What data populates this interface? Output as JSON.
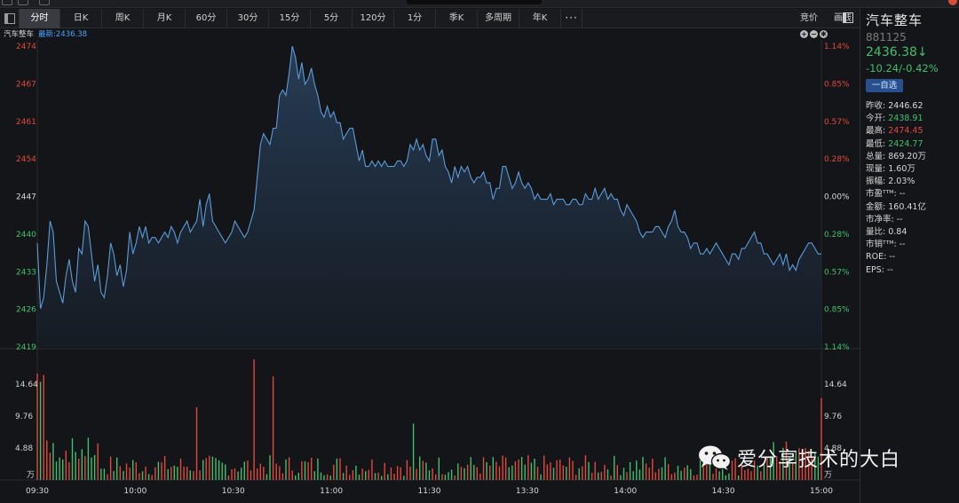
{
  "toolbar": {
    "periods": [
      "分时",
      "日K",
      "周K",
      "月K",
      "60分",
      "30分",
      "15分",
      "5分",
      "120分",
      "1分",
      "季K",
      "多周期",
      "年K"
    ],
    "active": "分时",
    "right_buttons": [
      "竞价",
      "画线"
    ],
    "more": "···"
  },
  "chart_header": {
    "name": "汽车整车",
    "latest_label": "最新:",
    "latest_value": "2436.38"
  },
  "colors": {
    "up": "#e2483b",
    "down": "#3fc06e",
    "flat": "#d8d8d8",
    "line": "#5b9bd8",
    "accent": "#4aa3ff"
  },
  "chart_data": {
    "type": "line",
    "x_ticks": [
      "09:30",
      "10:00",
      "10:30",
      "11:00",
      "11:30",
      "13:30",
      "14:00",
      "14:30",
      "15:00"
    ],
    "price_ticks": [
      "2474",
      "2467",
      "2461",
      "2454",
      "2447",
      "2440",
      "2433",
      "2426",
      "2419"
    ],
    "pct_ticks": [
      "1.14%",
      "0.85%",
      "0.57%",
      "0.28%",
      "0.00%",
      "0.28%",
      "0.57%",
      "0.85%",
      "1.14%"
    ],
    "prev_close": 2446.62,
    "ylim": [
      2419,
      2474
    ],
    "price": [
      2438,
      2426,
      2428,
      2434,
      2442,
      2440,
      2431,
      2429,
      2427,
      2432,
      2435,
      2431,
      2429,
      2437,
      2436,
      2442,
      2441,
      2436,
      2431,
      2434,
      2429,
      2428,
      2432,
      2438,
      2436,
      2432,
      2434,
      2430,
      2433,
      2440,
      2436,
      2438,
      2441,
      2439,
      2441,
      2438,
      2439,
      2439,
      2438,
      2439,
      2440,
      2439,
      2441,
      2440,
      2438,
      2440,
      2441,
      2442,
      2440,
      2441,
      2442,
      2446,
      2441,
      2445,
      2447,
      2442,
      2441,
      2440,
      2439,
      2438,
      2439,
      2440,
      2442,
      2441,
      2440,
      2439,
      2440,
      2442,
      2444,
      2450,
      2456,
      2458,
      2457,
      2456,
      2459,
      2459,
      2465,
      2466,
      2465,
      2469,
      2474,
      2472,
      2468,
      2471,
      2467,
      2468,
      2470,
      2467,
      2465,
      2462,
      2461,
      2463,
      2461,
      2462,
      2460,
      2460,
      2457,
      2458,
      2459,
      2459,
      2456,
      2453,
      2455,
      2452,
      2452,
      2453,
      2452,
      2453,
      2452,
      2453,
      2452,
      2452,
      2452,
      2453,
      2453,
      2452,
      2453,
      2456,
      2455,
      2457,
      2455,
      2456,
      2454,
      2453,
      2457,
      2457,
      2454,
      2455,
      2452,
      2451,
      2449,
      2452,
      2450,
      2452,
      2451,
      2452,
      2450,
      2449,
      2450,
      2450,
      2451,
      2449,
      2449,
      2446,
      2448,
      2448,
      2452,
      2452,
      2450,
      2448,
      2449,
      2451,
      2449,
      2448,
      2449,
      2448,
      2446,
      2447,
      2446,
      2446,
      2446,
      2447,
      2445,
      2446,
      2446,
      2446,
      2445,
      2445,
      2446,
      2446,
      2445,
      2445,
      2447,
      2446,
      2446,
      2448,
      2446,
      2447,
      2448,
      2446,
      2447,
      2446,
      2446,
      2444,
      2443,
      2445,
      2444,
      2443,
      2442,
      2440,
      2439,
      2440,
      2440,
      2440,
      2441,
      2441,
      2440,
      2439,
      2441,
      2442,
      2444,
      2441,
      2440,
      2440,
      2439,
      2437,
      2438,
      2438,
      2436,
      2436,
      2437,
      2436,
      2437,
      2438,
      2437,
      2436,
      2435,
      2434,
      2436,
      2436,
      2435,
      2437,
      2437,
      2438,
      2439,
      2440,
      2438,
      2438,
      2436,
      2436,
      2435,
      2434,
      2435,
      2436,
      2434,
      2436,
      2433,
      2434,
      2433,
      2435,
      2436,
      2437,
      2438,
      2438,
      2437,
      2436,
      2436
    ],
    "volume_ticks": [
      "14.64",
      "9.76",
      "4.88",
      "万"
    ],
    "volume_unit": "万",
    "volume_max": 19.5
  },
  "panel": {
    "name": "汽车整车",
    "code": "881125",
    "price": "2436.38↓",
    "change": "-10.24/-0.42%",
    "watch_button": "一自选",
    "stats": [
      {
        "label": "昨收:",
        "value": "2446.62",
        "tone": "flat"
      },
      {
        "label": "今开:",
        "value": "2438.91",
        "tone": "down"
      },
      {
        "label": "最高:",
        "value": "2474.45",
        "tone": "up"
      },
      {
        "label": "最低:",
        "value": "2424.77",
        "tone": "down"
      },
      {
        "label": "总量:",
        "value": "869.20万",
        "tone": "flat"
      },
      {
        "label": "现量:",
        "value": "1.60万",
        "tone": "flat"
      },
      {
        "label": "振幅:",
        "value": "2.03%",
        "tone": "flat"
      },
      {
        "label": "市盈ᵀᵀᴹ:",
        "value": "--",
        "tone": "flat"
      },
      {
        "label": "金额:",
        "value": "160.41亿",
        "tone": "flat"
      },
      {
        "label": "市净率:",
        "value": "--",
        "tone": "flat"
      },
      {
        "label": "量比:",
        "value": "0.84",
        "tone": "flat"
      },
      {
        "label": "市销ᵀᵀᴹ:",
        "value": "--",
        "tone": "flat"
      },
      {
        "label": "ROE:",
        "value": "--",
        "tone": "flat"
      },
      {
        "label": "EPS:",
        "value": "--",
        "tone": "flat"
      }
    ]
  },
  "watermark": {
    "text": "爱分享技术的大白",
    "icon": "wechat-icon"
  }
}
